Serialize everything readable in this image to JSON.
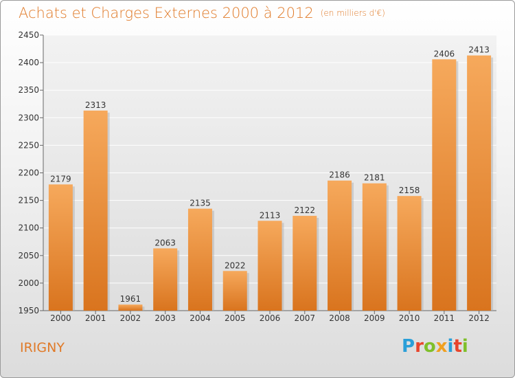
{
  "header": {
    "title": "Achats et Charges Externes 2000 à 2012",
    "unit": "(en milliers d'€)"
  },
  "footer": {
    "place": "IRIGNY",
    "brand": "Proxiti",
    "brand_letters": [
      "P",
      "r",
      "o",
      "x",
      "i",
      "t",
      "i"
    ],
    "brand_colors": [
      "#2a9fd8",
      "#e8452c",
      "#7fbf2a",
      "#f0a020",
      "#2a9fd8",
      "#e8452c",
      "#7fbf2a"
    ]
  },
  "colors": {
    "accent": "#e07a28",
    "bar_top": "#f6a95c",
    "bar_bottom": "#d9741e"
  },
  "chart_data": {
    "type": "bar",
    "categories": [
      "2000",
      "2001",
      "2002",
      "2003",
      "2004",
      "2005",
      "2006",
      "2007",
      "2008",
      "2009",
      "2010",
      "2011",
      "2012"
    ],
    "values": [
      2179,
      2313,
      1961,
      2063,
      2135,
      2022,
      2113,
      2122,
      2186,
      2181,
      2158,
      2406,
      2413
    ],
    "title": "Achats et Charges Externes 2000 à 2012",
    "xlabel": "",
    "ylabel": "",
    "ylim": [
      1950,
      2450
    ],
    "yticks": [
      1950,
      2000,
      2050,
      2100,
      2150,
      2200,
      2250,
      2300,
      2350,
      2400,
      2450
    ],
    "grid": true
  }
}
